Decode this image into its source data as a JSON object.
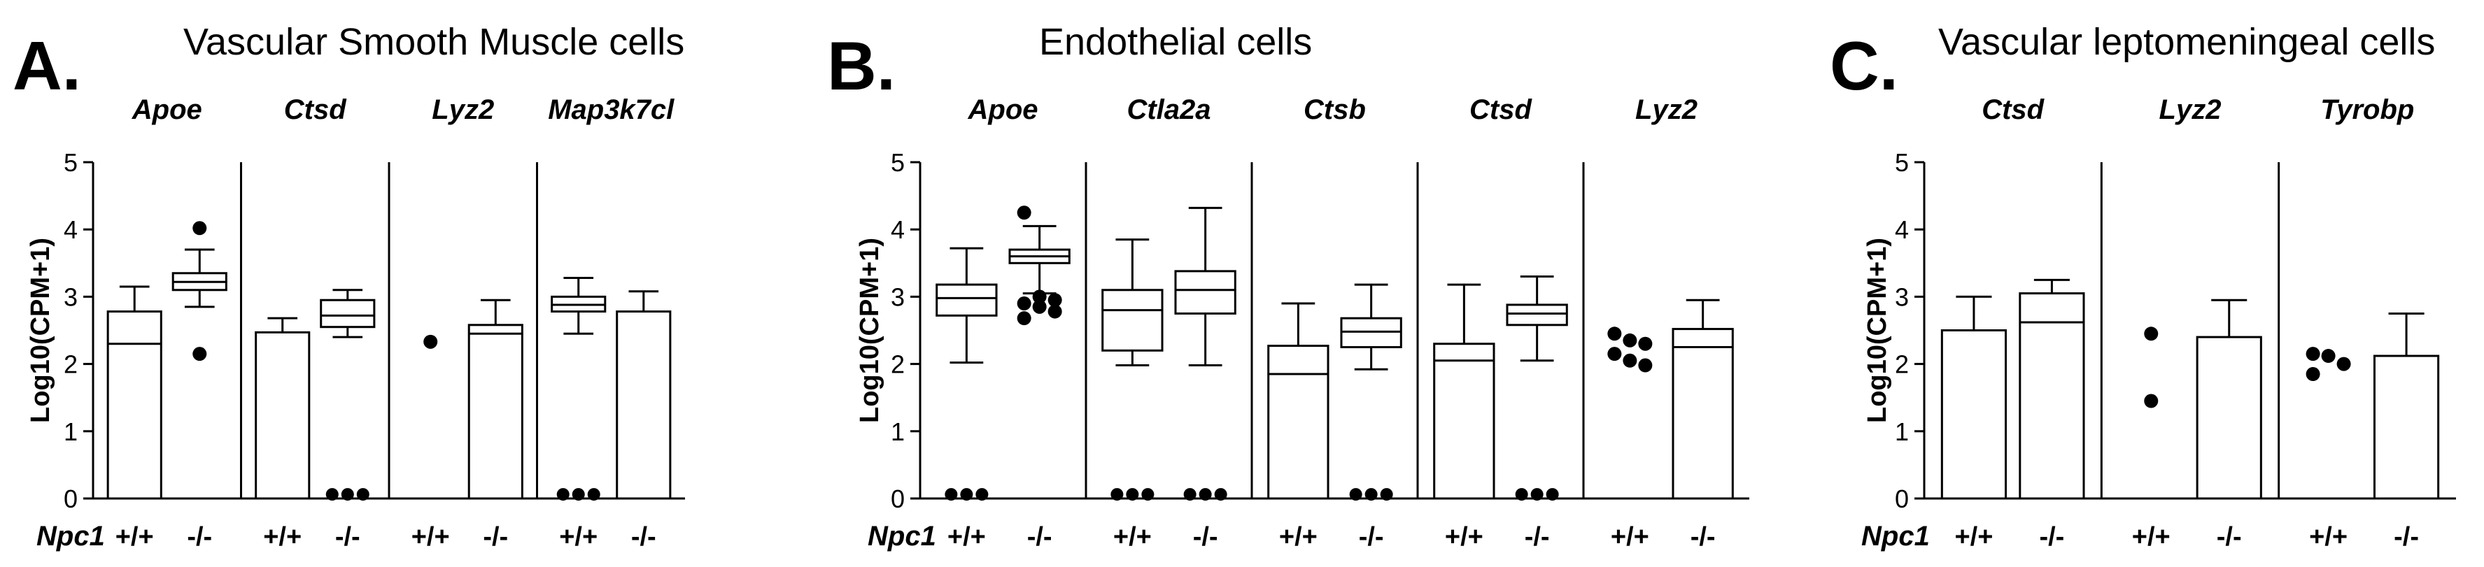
{
  "chart_data": [
    {
      "type": "box",
      "panel_letter": "A.",
      "title": "Vascular Smooth Muscle cells",
      "ylabel": "Log10(CPM+1)",
      "ylim": [
        0,
        5
      ],
      "yticks": [
        "0",
        "1",
        "2",
        "3",
        "4",
        "5"
      ],
      "genotype_label": "Npc1",
      "genes": [
        {
          "name": "Apoe",
          "groups": [
            {
              "label": "+/+",
              "kind": "bar",
              "value": 2.78,
              "median": 2.3,
              "whisker_high": 3.15
            },
            {
              "label": "-/-",
              "kind": "box",
              "min": 2.85,
              "q1": 3.1,
              "median": 3.22,
              "q3": 3.35,
              "max": 3.7,
              "outliers": [
                4.02,
                2.15
              ]
            }
          ]
        },
        {
          "name": "Ctsd",
          "groups": [
            {
              "label": "+/+",
              "kind": "bar",
              "value": 2.47,
              "whisker_high": 2.68
            },
            {
              "label": "-/-",
              "kind": "box",
              "min": 2.4,
              "q1": 2.55,
              "median": 2.72,
              "q3": 2.95,
              "max": 3.1,
              "outliers": [
                0.03,
                0.03,
                0.03
              ]
            }
          ]
        },
        {
          "name": "Lyz2",
          "groups": [
            {
              "label": "+/+",
              "kind": "points",
              "outliers": [
                2.33
              ]
            },
            {
              "label": "-/-",
              "kind": "bar",
              "value": 2.58,
              "median": 2.45,
              "whisker_high": 2.95
            }
          ]
        },
        {
          "name": "Map3k7cl",
          "groups": [
            {
              "label": "+/+",
              "kind": "box",
              "min": 2.45,
              "q1": 2.78,
              "median": 2.88,
              "q3": 3.0,
              "max": 3.28,
              "outliers": [
                0.03,
                0.03,
                0.03
              ]
            },
            {
              "label": "-/-",
              "kind": "bar",
              "value": 2.78,
              "whisker_high": 3.08
            }
          ]
        }
      ]
    },
    {
      "type": "box",
      "panel_letter": "B.",
      "title": "Endothelial cells",
      "ylabel": "Log10(CPM+1)",
      "ylim": [
        0,
        5
      ],
      "yticks": [
        "0",
        "1",
        "2",
        "3",
        "4",
        "5"
      ],
      "genotype_label": "Npc1",
      "genes": [
        {
          "name": "Apoe",
          "groups": [
            {
              "label": "+/+",
              "kind": "box",
              "min": 2.02,
              "q1": 2.72,
              "median": 2.98,
              "q3": 3.18,
              "max": 3.72,
              "outliers": [
                0.03,
                0.03,
                0.03
              ]
            },
            {
              "label": "-/-",
              "kind": "box",
              "min": 3.05,
              "q1": 3.5,
              "median": 3.6,
              "q3": 3.7,
              "max": 4.05,
              "outliers": [
                4.25,
                3.0,
                2.95,
                2.9,
                2.85,
                2.78,
                2.68
              ]
            }
          ]
        },
        {
          "name": "Ctla2a",
          "groups": [
            {
              "label": "+/+",
              "kind": "box",
              "min": 1.98,
              "q1": 2.2,
              "median": 2.8,
              "q3": 3.1,
              "max": 3.85,
              "outliers": [
                0.03,
                0.03,
                0.03
              ]
            },
            {
              "label": "-/-",
              "kind": "box",
              "min": 1.98,
              "q1": 2.75,
              "median": 3.1,
              "q3": 3.38,
              "max": 4.32,
              "outliers": [
                0.03,
                0.03,
                0.03
              ]
            }
          ]
        },
        {
          "name": "Ctsb",
          "groups": [
            {
              "label": "+/+",
              "kind": "bar",
              "value": 2.27,
              "median": 1.85,
              "whisker_high": 2.9
            },
            {
              "label": "-/-",
              "kind": "box",
              "min": 1.92,
              "q1": 2.25,
              "median": 2.48,
              "q3": 2.68,
              "max": 3.18,
              "outliers": [
                0.03,
                0.03,
                0.03
              ]
            }
          ]
        },
        {
          "name": "Ctsd",
          "groups": [
            {
              "label": "+/+",
              "kind": "bar",
              "value": 2.3,
              "median": 2.05,
              "whisker_high": 3.18
            },
            {
              "label": "-/-",
              "kind": "box",
              "min": 2.05,
              "q1": 2.58,
              "median": 2.75,
              "q3": 2.88,
              "max": 3.3,
              "outliers": [
                0.03,
                0.03,
                0.03
              ]
            }
          ]
        },
        {
          "name": "Lyz2",
          "groups": [
            {
              "label": "+/+",
              "kind": "points",
              "outliers": [
                2.45,
                2.35,
                2.3,
                2.15,
                2.05,
                1.98
              ]
            },
            {
              "label": "-/-",
              "kind": "bar",
              "value": 2.52,
              "median": 2.25,
              "whisker_high": 2.95
            }
          ]
        }
      ]
    },
    {
      "type": "box",
      "panel_letter": "C.",
      "title": "Vascular leptomeningeal cells",
      "ylabel": "Log10(CPM+1)",
      "ylim": [
        0,
        5
      ],
      "yticks": [
        "0",
        "1",
        "2",
        "3",
        "4",
        "5"
      ],
      "genotype_label": "Npc1",
      "genes": [
        {
          "name": "Ctsd",
          "groups": [
            {
              "label": "+/+",
              "kind": "bar",
              "value": 2.5,
              "whisker_high": 3.0
            },
            {
              "label": "-/-",
              "kind": "bar",
              "value": 3.05,
              "median": 2.62,
              "whisker_high": 3.25
            }
          ]
        },
        {
          "name": "Lyz2",
          "groups": [
            {
              "label": "+/+",
              "kind": "points",
              "outliers": [
                2.45,
                1.45
              ]
            },
            {
              "label": "-/-",
              "kind": "bar",
              "value": 2.4,
              "whisker_high": 2.95
            }
          ]
        },
        {
          "name": "Tyrobp",
          "groups": [
            {
              "label": "+/+",
              "kind": "points",
              "outliers": [
                2.15,
                2.12,
                2.0,
                1.85
              ]
            },
            {
              "label": "-/-",
              "kind": "bar",
              "value": 2.12,
              "whisker_high": 2.75
            }
          ]
        }
      ]
    }
  ]
}
